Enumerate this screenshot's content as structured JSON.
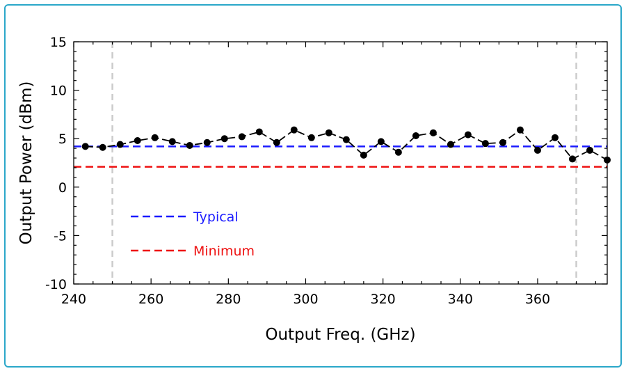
{
  "chart_data": {
    "type": "line",
    "title": "",
    "xlabel": "Output Freq. (GHz)",
    "ylabel": "Output Power (dBm)",
    "xlim": [
      240,
      378
    ],
    "ylim": [
      -10,
      15
    ],
    "xticks": [
      240,
      260,
      280,
      300,
      320,
      340,
      360
    ],
    "yticks": [
      -10,
      -5,
      0,
      5,
      10,
      15
    ],
    "grid": false,
    "legend_position": "left",
    "series": [
      {
        "name": "",
        "color": "#000000",
        "x": [
          243,
          247.5,
          252,
          256.5,
          261,
          265.5,
          270,
          274.5,
          279,
          283.5,
          288,
          292.5,
          297,
          301.5,
          306,
          310.5,
          315,
          319.5,
          324,
          328.5,
          333,
          337.5,
          342,
          346.5,
          351,
          355.5,
          360,
          364.5,
          369,
          373.5,
          378
        ],
        "y": [
          4.2,
          4.1,
          4.4,
          4.8,
          5.1,
          4.7,
          4.3,
          4.6,
          5.0,
          5.2,
          5.7,
          4.6,
          5.9,
          5.1,
          5.6,
          4.9,
          3.3,
          4.7,
          3.6,
          5.3,
          5.6,
          4.4,
          5.4,
          4.5,
          4.6,
          5.9,
          3.8,
          5.1,
          2.9,
          3.8,
          2.8
        ]
      }
    ],
    "reference_lines": [
      {
        "name": "Typical",
        "y": 4.2,
        "color": "#1a1aff"
      },
      {
        "name": "Minimum",
        "y": 2.1,
        "color": "#ee1111"
      }
    ],
    "band_lines": [
      {
        "x": 250,
        "color": "#cccccc"
      },
      {
        "x": 370,
        "color": "#cccccc"
      }
    ]
  }
}
